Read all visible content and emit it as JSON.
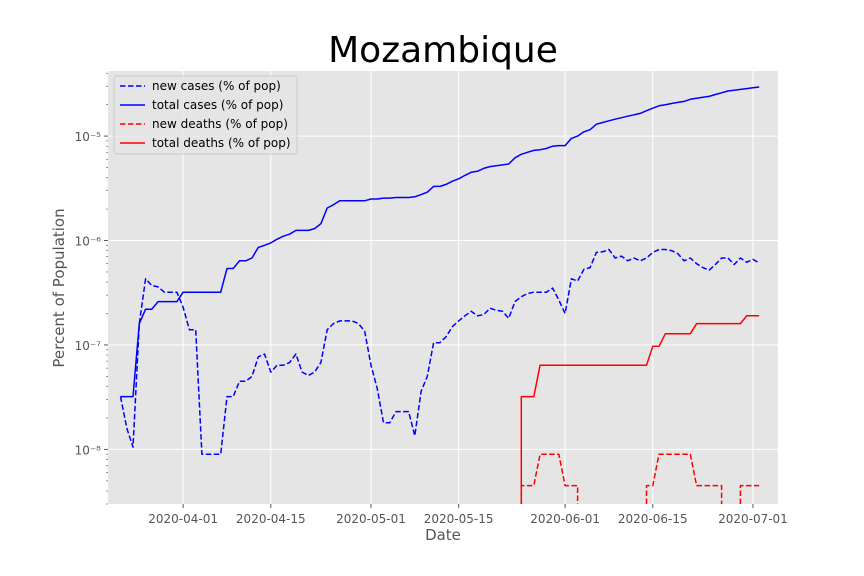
{
  "chart_data": {
    "type": "line",
    "title": "Mozambique",
    "xlabel": "Date",
    "ylabel": "Percent of Population",
    "yscale": "log",
    "ylim": [
      3e-09,
      4.2e-05
    ],
    "xlim": [
      "2020-03-20",
      "2020-07-05"
    ],
    "grid": true,
    "legend_position": "top-left",
    "x_ticks": [
      "2020-04-01",
      "2020-04-15",
      "2020-05-01",
      "2020-05-15",
      "2020-06-01",
      "2020-06-15",
      "2020-07-01"
    ],
    "y_ticks": [
      1e-08,
      1e-07,
      1e-06,
      1e-05
    ],
    "y_tick_labels": [
      "10⁻⁸",
      "10⁻⁷",
      "10⁻⁶",
      "10⁻⁵"
    ],
    "colors": {
      "cases": "#0000ff",
      "deaths": "#ff0000",
      "background": "#e5e5e5",
      "grid": "#ffffff"
    },
    "series": [
      {
        "name": "new cases (% of pop)",
        "color": "#0000ff",
        "dash": "dashed",
        "points": [
          [
            "2020-03-22",
            3.2e-08
          ],
          [
            "2020-03-23",
            1.6e-08
          ],
          [
            "2020-03-24",
            1.05e-08
          ],
          [
            "2020-03-25",
            1.6e-07
          ],
          [
            "2020-03-26",
            4.3e-07
          ],
          [
            "2020-03-27",
            3.7e-07
          ],
          [
            "2020-03-28",
            3.6e-07
          ],
          [
            "2020-03-29",
            3.2e-07
          ],
          [
            "2020-03-30",
            3.2e-07
          ],
          [
            "2020-03-31",
            3.2e-07
          ],
          [
            "2020-04-01",
            2.3e-07
          ],
          [
            "2020-04-02",
            1.4e-07
          ],
          [
            "2020-04-03",
            1.4e-07
          ],
          [
            "2020-04-04",
            9e-09
          ],
          [
            "2020-04-05",
            9e-09
          ],
          [
            "2020-04-06",
            9e-09
          ],
          [
            "2020-04-07",
            9e-09
          ],
          [
            "2020-04-08",
            3.2e-08
          ],
          [
            "2020-04-09",
            3.2e-08
          ],
          [
            "2020-04-10",
            4.5e-08
          ],
          [
            "2020-04-11",
            4.5e-08
          ],
          [
            "2020-04-12",
            5e-08
          ],
          [
            "2020-04-13",
            7.7e-08
          ],
          [
            "2020-04-14",
            8.2e-08
          ],
          [
            "2020-04-15",
            5.5e-08
          ],
          [
            "2020-04-16",
            6.4e-08
          ],
          [
            "2020-04-17",
            6.4e-08
          ],
          [
            "2020-04-18",
            6.8e-08
          ],
          [
            "2020-04-19",
            8.2e-08
          ],
          [
            "2020-04-20",
            5.5e-08
          ],
          [
            "2020-04-21",
            5.1e-08
          ],
          [
            "2020-04-22",
            5.5e-08
          ],
          [
            "2020-04-23",
            6.8e-08
          ],
          [
            "2020-04-24",
            1.4e-07
          ],
          [
            "2020-04-25",
            1.6e-07
          ],
          [
            "2020-04-26",
            1.7e-07
          ],
          [
            "2020-04-27",
            1.7e-07
          ],
          [
            "2020-04-28",
            1.7e-07
          ],
          [
            "2020-04-29",
            1.6e-07
          ],
          [
            "2020-04-30",
            1.35e-07
          ],
          [
            "2020-05-01",
            6.4e-08
          ],
          [
            "2020-05-02",
            3.8e-08
          ],
          [
            "2020-05-03",
            1.8e-08
          ],
          [
            "2020-05-04",
            1.8e-08
          ],
          [
            "2020-05-05",
            2.3e-08
          ],
          [
            "2020-05-06",
            2.3e-08
          ],
          [
            "2020-05-07",
            2.3e-08
          ],
          [
            "2020-05-08",
            1.35e-08
          ],
          [
            "2020-05-09",
            3.6e-08
          ],
          [
            "2020-05-10",
            5e-08
          ],
          [
            "2020-05-11",
            1.05e-07
          ],
          [
            "2020-05-12",
            1.05e-07
          ],
          [
            "2020-05-13",
            1.2e-07
          ],
          [
            "2020-05-14",
            1.5e-07
          ],
          [
            "2020-05-15",
            1.7e-07
          ],
          [
            "2020-05-16",
            1.9e-07
          ],
          [
            "2020-05-17",
            2.1e-07
          ],
          [
            "2020-05-18",
            1.9e-07
          ],
          [
            "2020-05-19",
            1.95e-07
          ],
          [
            "2020-05-20",
            2.25e-07
          ],
          [
            "2020-05-21",
            2.15e-07
          ],
          [
            "2020-05-22",
            2.1e-07
          ],
          [
            "2020-05-23",
            1.8e-07
          ],
          [
            "2020-05-24",
            2.6e-07
          ],
          [
            "2020-05-25",
            2.9e-07
          ],
          [
            "2020-05-26",
            3.1e-07
          ],
          [
            "2020-05-27",
            3.2e-07
          ],
          [
            "2020-05-28",
            3.2e-07
          ],
          [
            "2020-05-29",
            3.2e-07
          ],
          [
            "2020-05-30",
            3.5e-07
          ],
          [
            "2020-05-31",
            2.7e-07
          ],
          [
            "2020-06-01",
            2e-07
          ],
          [
            "2020-06-02",
            4.3e-07
          ],
          [
            "2020-06-03",
            4.1e-07
          ],
          [
            "2020-06-04",
            5.3e-07
          ],
          [
            "2020-06-05",
            5.5e-07
          ],
          [
            "2020-06-06",
            7.7e-07
          ],
          [
            "2020-06-07",
            7.8e-07
          ],
          [
            "2020-06-08",
            8.2e-07
          ],
          [
            "2020-06-09",
            6.8e-07
          ],
          [
            "2020-06-10",
            7.1e-07
          ],
          [
            "2020-06-11",
            6.4e-07
          ],
          [
            "2020-06-12",
            6.8e-07
          ],
          [
            "2020-06-13",
            6.4e-07
          ],
          [
            "2020-06-14",
            6.8e-07
          ],
          [
            "2020-06-15",
            7.7e-07
          ],
          [
            "2020-06-16",
            8.2e-07
          ],
          [
            "2020-06-17",
            8.2e-07
          ],
          [
            "2020-06-18",
            8e-07
          ],
          [
            "2020-06-19",
            7.5e-07
          ],
          [
            "2020-06-20",
            6.4e-07
          ],
          [
            "2020-06-21",
            6.8e-07
          ],
          [
            "2020-06-22",
            6e-07
          ],
          [
            "2020-06-23",
            5.5e-07
          ],
          [
            "2020-06-24",
            5.2e-07
          ],
          [
            "2020-06-25",
            5.9e-07
          ],
          [
            "2020-06-26",
            6.8e-07
          ],
          [
            "2020-06-27",
            6.8e-07
          ],
          [
            "2020-06-28",
            5.9e-07
          ],
          [
            "2020-06-29",
            6.8e-07
          ],
          [
            "2020-06-30",
            6.2e-07
          ],
          [
            "2020-07-01",
            6.6e-07
          ],
          [
            "2020-07-02",
            6.1e-07
          ]
        ]
      },
      {
        "name": "total cases (% of pop)",
        "color": "#0000ff",
        "dash": "solid",
        "points": [
          [
            "2020-03-22",
            3.2e-08
          ],
          [
            "2020-03-23",
            3.2e-08
          ],
          [
            "2020-03-24",
            3.2e-08
          ],
          [
            "2020-03-25",
            1.6e-07
          ],
          [
            "2020-03-26",
            2.2e-07
          ],
          [
            "2020-03-27",
            2.2e-07
          ],
          [
            "2020-03-28",
            2.6e-07
          ],
          [
            "2020-03-29",
            2.6e-07
          ],
          [
            "2020-03-30",
            2.6e-07
          ],
          [
            "2020-03-31",
            2.6e-07
          ],
          [
            "2020-04-01",
            3.2e-07
          ],
          [
            "2020-04-02",
            3.2e-07
          ],
          [
            "2020-04-03",
            3.2e-07
          ],
          [
            "2020-04-04",
            3.2e-07
          ],
          [
            "2020-04-05",
            3.2e-07
          ],
          [
            "2020-04-06",
            3.2e-07
          ],
          [
            "2020-04-07",
            3.2e-07
          ],
          [
            "2020-04-08",
            5.4e-07
          ],
          [
            "2020-04-09",
            5.4e-07
          ],
          [
            "2020-04-10",
            6.4e-07
          ],
          [
            "2020-04-11",
            6.4e-07
          ],
          [
            "2020-04-12",
            6.8e-07
          ],
          [
            "2020-04-13",
            8.6e-07
          ],
          [
            "2020-04-14",
            9e-07
          ],
          [
            "2020-04-15",
            9.5e-07
          ],
          [
            "2020-04-16",
            1.03e-06
          ],
          [
            "2020-04-17",
            1.1e-06
          ],
          [
            "2020-04-18",
            1.15e-06
          ],
          [
            "2020-04-19",
            1.25e-06
          ],
          [
            "2020-04-20",
            1.25e-06
          ],
          [
            "2020-04-21",
            1.25e-06
          ],
          [
            "2020-04-22",
            1.3e-06
          ],
          [
            "2020-04-23",
            1.45e-06
          ],
          [
            "2020-04-24",
            2.05e-06
          ],
          [
            "2020-04-25",
            2.2e-06
          ],
          [
            "2020-04-26",
            2.4e-06
          ],
          [
            "2020-04-27",
            2.4e-06
          ],
          [
            "2020-04-28",
            2.4e-06
          ],
          [
            "2020-04-29",
            2.4e-06
          ],
          [
            "2020-04-30",
            2.4e-06
          ],
          [
            "2020-05-01",
            2.5e-06
          ],
          [
            "2020-05-02",
            2.5e-06
          ],
          [
            "2020-05-03",
            2.55e-06
          ],
          [
            "2020-05-04",
            2.55e-06
          ],
          [
            "2020-05-05",
            2.58e-06
          ],
          [
            "2020-05-06",
            2.58e-06
          ],
          [
            "2020-05-07",
            2.58e-06
          ],
          [
            "2020-05-08",
            2.62e-06
          ],
          [
            "2020-05-09",
            2.75e-06
          ],
          [
            "2020-05-10",
            2.9e-06
          ],
          [
            "2020-05-11",
            3.3e-06
          ],
          [
            "2020-05-12",
            3.3e-06
          ],
          [
            "2020-05-13",
            3.45e-06
          ],
          [
            "2020-05-14",
            3.7e-06
          ],
          [
            "2020-05-15",
            3.9e-06
          ],
          [
            "2020-05-16",
            4.2e-06
          ],
          [
            "2020-05-17",
            4.5e-06
          ],
          [
            "2020-05-18",
            4.6e-06
          ],
          [
            "2020-05-19",
            4.9e-06
          ],
          [
            "2020-05-20",
            5.1e-06
          ],
          [
            "2020-05-21",
            5.2e-06
          ],
          [
            "2020-05-22",
            5.3e-06
          ],
          [
            "2020-05-23",
            5.4e-06
          ],
          [
            "2020-05-24",
            6.2e-06
          ],
          [
            "2020-05-25",
            6.7e-06
          ],
          [
            "2020-05-26",
            7e-06
          ],
          [
            "2020-05-27",
            7.3e-06
          ],
          [
            "2020-05-28",
            7.4e-06
          ],
          [
            "2020-05-29",
            7.6e-06
          ],
          [
            "2020-05-30",
            8e-06
          ],
          [
            "2020-05-31",
            8.1e-06
          ],
          [
            "2020-06-01",
            8.1e-06
          ],
          [
            "2020-06-02",
            9.5e-06
          ],
          [
            "2020-06-03",
            1e-05
          ],
          [
            "2020-06-04",
            1.1e-05
          ],
          [
            "2020-06-05",
            1.15e-05
          ],
          [
            "2020-06-06",
            1.3e-05
          ],
          [
            "2020-06-07",
            1.35e-05
          ],
          [
            "2020-06-08",
            1.4e-05
          ],
          [
            "2020-06-09",
            1.45e-05
          ],
          [
            "2020-06-10",
            1.5e-05
          ],
          [
            "2020-06-11",
            1.55e-05
          ],
          [
            "2020-06-12",
            1.6e-05
          ],
          [
            "2020-06-13",
            1.65e-05
          ],
          [
            "2020-06-14",
            1.75e-05
          ],
          [
            "2020-06-15",
            1.85e-05
          ],
          [
            "2020-06-16",
            1.95e-05
          ],
          [
            "2020-06-17",
            2e-05
          ],
          [
            "2020-06-18",
            2.05e-05
          ],
          [
            "2020-06-19",
            2.1e-05
          ],
          [
            "2020-06-20",
            2.15e-05
          ],
          [
            "2020-06-21",
            2.25e-05
          ],
          [
            "2020-06-22",
            2.3e-05
          ],
          [
            "2020-06-23",
            2.35e-05
          ],
          [
            "2020-06-24",
            2.4e-05
          ],
          [
            "2020-06-25",
            2.5e-05
          ],
          [
            "2020-06-26",
            2.6e-05
          ],
          [
            "2020-06-27",
            2.7e-05
          ],
          [
            "2020-06-28",
            2.75e-05
          ],
          [
            "2020-06-29",
            2.8e-05
          ],
          [
            "2020-06-30",
            2.85e-05
          ],
          [
            "2020-07-01",
            2.9e-05
          ],
          [
            "2020-07-02",
            2.95e-05
          ]
        ]
      },
      {
        "name": "new deaths (% of pop)",
        "color": "#ff0000",
        "dash": "dashed",
        "points": [
          [
            "2020-05-25",
            3e-09
          ],
          [
            "2020-05-25",
            4.5e-09
          ],
          [
            "2020-05-26",
            4.5e-09
          ],
          [
            "2020-05-27",
            4.5e-09
          ],
          [
            "2020-05-28",
            9e-09
          ],
          [
            "2020-05-29",
            9e-09
          ],
          [
            "2020-05-30",
            9e-09
          ],
          [
            "2020-05-31",
            9e-09
          ],
          [
            "2020-06-01",
            4.5e-09
          ],
          [
            "2020-06-02",
            4.5e-09
          ],
          [
            "2020-06-03",
            4.5e-09
          ],
          [
            "2020-06-03",
            3e-09
          ],
          null,
          [
            "2020-06-14",
            3e-09
          ],
          [
            "2020-06-14",
            4.5e-09
          ],
          [
            "2020-06-15",
            4.5e-09
          ],
          [
            "2020-06-16",
            9e-09
          ],
          [
            "2020-06-17",
            9e-09
          ],
          [
            "2020-06-18",
            9e-09
          ],
          [
            "2020-06-19",
            9e-09
          ],
          [
            "2020-06-20",
            9e-09
          ],
          [
            "2020-06-21",
            9e-09
          ],
          [
            "2020-06-22",
            4.5e-09
          ],
          [
            "2020-06-23",
            4.5e-09
          ],
          [
            "2020-06-24",
            4.5e-09
          ],
          [
            "2020-06-25",
            4.5e-09
          ],
          [
            "2020-06-26",
            4.5e-09
          ],
          [
            "2020-06-26",
            3e-09
          ],
          null,
          [
            "2020-06-29",
            3e-09
          ],
          [
            "2020-06-29",
            4.5e-09
          ],
          [
            "2020-06-30",
            4.5e-09
          ],
          [
            "2020-07-01",
            4.5e-09
          ],
          [
            "2020-07-02",
            4.5e-09
          ]
        ]
      },
      {
        "name": "total deaths (% of pop)",
        "color": "#ff0000",
        "dash": "solid",
        "points": [
          [
            "2020-05-25",
            3e-09
          ],
          [
            "2020-05-25",
            3.2e-08
          ],
          [
            "2020-05-26",
            3.2e-08
          ],
          [
            "2020-05-27",
            3.2e-08
          ],
          [
            "2020-05-28",
            6.4e-08
          ],
          [
            "2020-05-29",
            6.4e-08
          ],
          [
            "2020-06-01",
            6.4e-08
          ],
          [
            "2020-06-05",
            6.4e-08
          ],
          [
            "2020-06-10",
            6.4e-08
          ],
          [
            "2020-06-14",
            6.4e-08
          ],
          [
            "2020-06-15",
            9.7e-08
          ],
          [
            "2020-06-16",
            9.7e-08
          ],
          [
            "2020-06-17",
            1.28e-07
          ],
          [
            "2020-06-18",
            1.28e-07
          ],
          [
            "2020-06-21",
            1.28e-07
          ],
          [
            "2020-06-22",
            1.6e-07
          ],
          [
            "2020-06-23",
            1.6e-07
          ],
          [
            "2020-06-29",
            1.6e-07
          ],
          [
            "2020-06-30",
            1.9e-07
          ],
          [
            "2020-07-01",
            1.9e-07
          ],
          [
            "2020-07-02",
            1.9e-07
          ]
        ]
      }
    ]
  }
}
